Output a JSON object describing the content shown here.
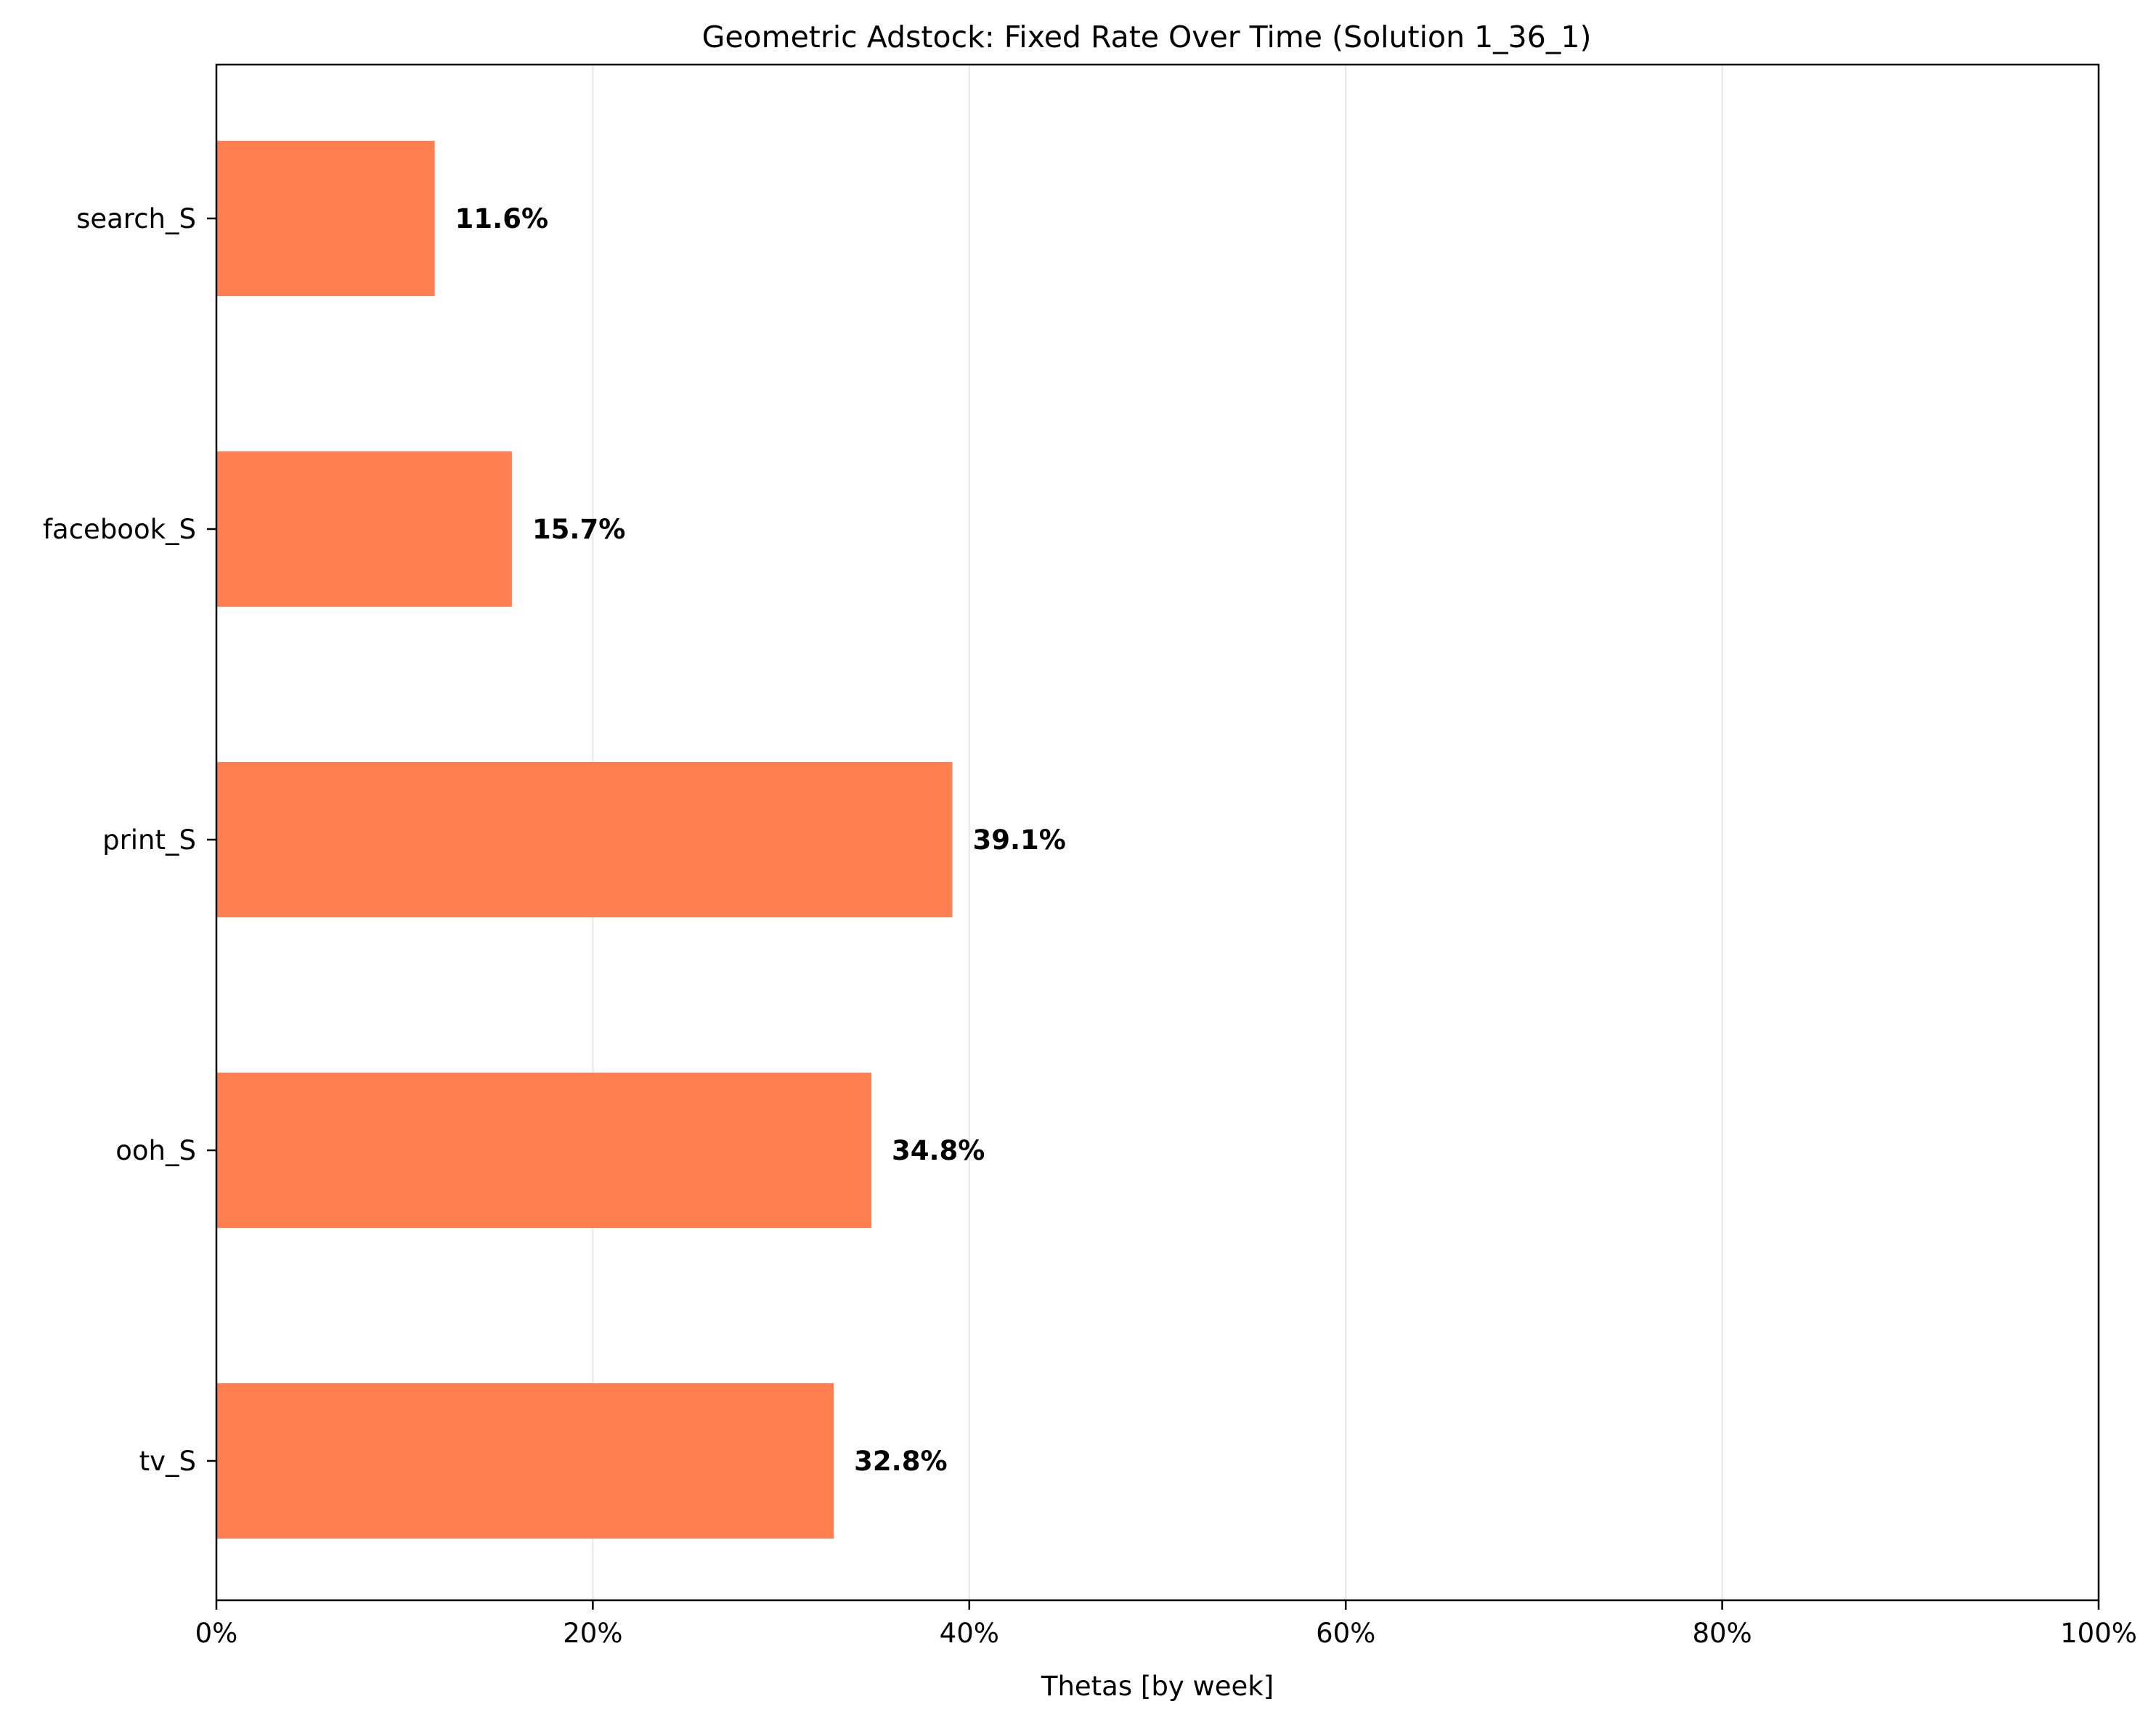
{
  "chart_data": {
    "type": "bar",
    "orientation": "horizontal",
    "title": "Geometric Adstock: Fixed Rate Over Time (Solution 1_36_1)",
    "xlabel": "Thetas [by week]",
    "ylabel": "",
    "categories": [
      "tv_S",
      "ooh_S",
      "print_S",
      "facebook_S",
      "search_S"
    ],
    "values": [
      0.328,
      0.348,
      0.391,
      0.157,
      0.116
    ],
    "value_labels": [
      "32.8%",
      "34.8%",
      "39.1%",
      "15.7%",
      "11.6%"
    ],
    "xlim": [
      0,
      1
    ],
    "x_ticks": [
      0,
      0.2,
      0.4,
      0.6,
      0.8,
      1.0
    ],
    "x_tick_labels": [
      "0%",
      "20%",
      "40%",
      "60%",
      "80%",
      "100%"
    ],
    "grid": "vertical",
    "legend": "none",
    "colors": {
      "bar": "#ff7f50",
      "grid": "#e6e6e6",
      "axis": "#000000"
    }
  }
}
